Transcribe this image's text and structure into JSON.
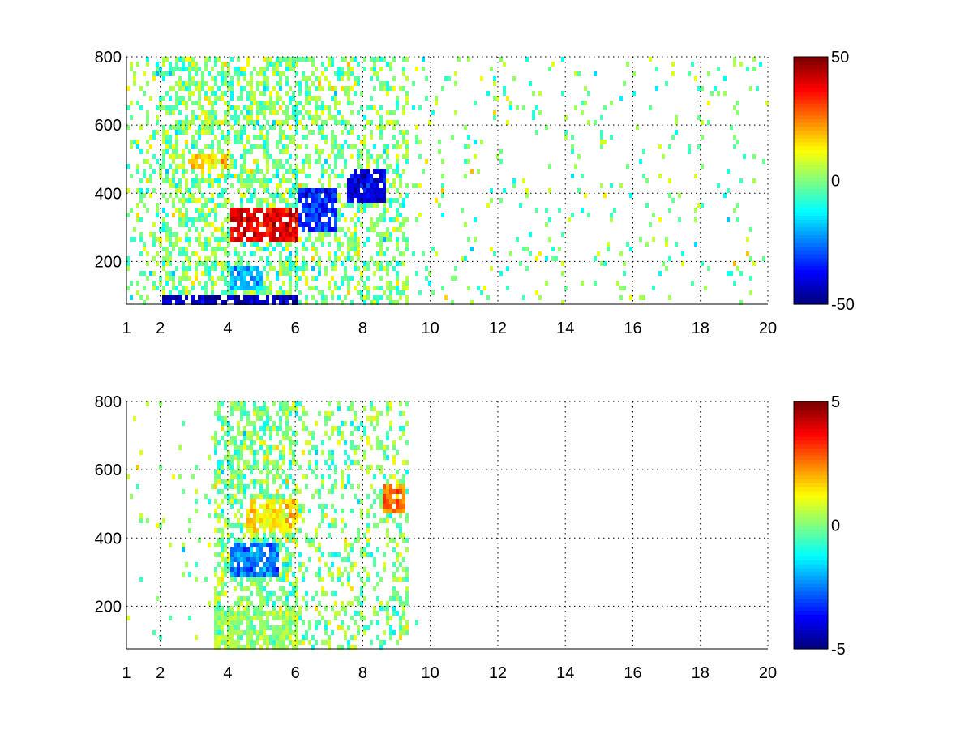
{
  "chart_data": [
    {
      "type": "heatmap",
      "title": "",
      "xlabel": "",
      "ylabel": "",
      "xlim": [
        1,
        20
      ],
      "ylim": [
        75,
        800
      ],
      "x_ticks": [
        1,
        2,
        4,
        6,
        8,
        10,
        12,
        14,
        16,
        18,
        20
      ],
      "y_ticks": [
        200,
        400,
        600,
        800
      ],
      "grid": true,
      "colormap": "jet",
      "colorbar": {
        "min": -50,
        "max": 50,
        "ticks": [
          50,
          0,
          -50
        ]
      },
      "features": [
        {
          "x_range": [
            4.0,
            6.0
          ],
          "y_range": [
            260,
            360
          ],
          "value": 40,
          "description_value_only": true
        },
        {
          "x_range": [
            6.0,
            7.2
          ],
          "y_range": [
            300,
            420
          ],
          "value": -35
        },
        {
          "x_range": [
            7.5,
            8.6
          ],
          "y_range": [
            380,
            480
          ],
          "value": -40
        },
        {
          "x_range": [
            2.8,
            4.0
          ],
          "y_range": [
            480,
            520
          ],
          "value": 15
        },
        {
          "x_range": [
            2.0,
            6.0
          ],
          "y_range": [
            75,
            110
          ],
          "value": -45
        },
        {
          "x_range": [
            4.0,
            5.0
          ],
          "y_range": [
            120,
            200
          ],
          "value": -20
        }
      ],
      "data_extent_x": [
        1,
        20
      ],
      "sparse_beyond_x": 9.3
    },
    {
      "type": "heatmap",
      "title": "",
      "xlabel": "",
      "ylabel": "",
      "xlim": [
        1,
        20
      ],
      "ylim": [
        75,
        800
      ],
      "x_ticks": [
        1,
        2,
        4,
        6,
        8,
        10,
        12,
        14,
        16,
        18,
        20
      ],
      "y_ticks": [
        200,
        400,
        600,
        800
      ],
      "grid": true,
      "colormap": "jet",
      "colorbar": {
        "min": -5,
        "max": 5,
        "ticks": [
          5,
          0,
          -5
        ]
      },
      "features": [
        {
          "x_range": [
            4.0,
            5.5
          ],
          "y_range": [
            300,
            400
          ],
          "value": -2.5
        },
        {
          "x_range": [
            3.5,
            6.0
          ],
          "y_range": [
            75,
            200
          ],
          "value": 0.2
        },
        {
          "x_range": [
            8.5,
            9.2
          ],
          "y_range": [
            480,
            560
          ],
          "value": 2.5
        },
        {
          "x_range": [
            4.5,
            6.0
          ],
          "y_range": [
            420,
            520
          ],
          "value": 1.5
        }
      ],
      "data_extent_x": [
        1,
        10.3
      ]
    }
  ]
}
